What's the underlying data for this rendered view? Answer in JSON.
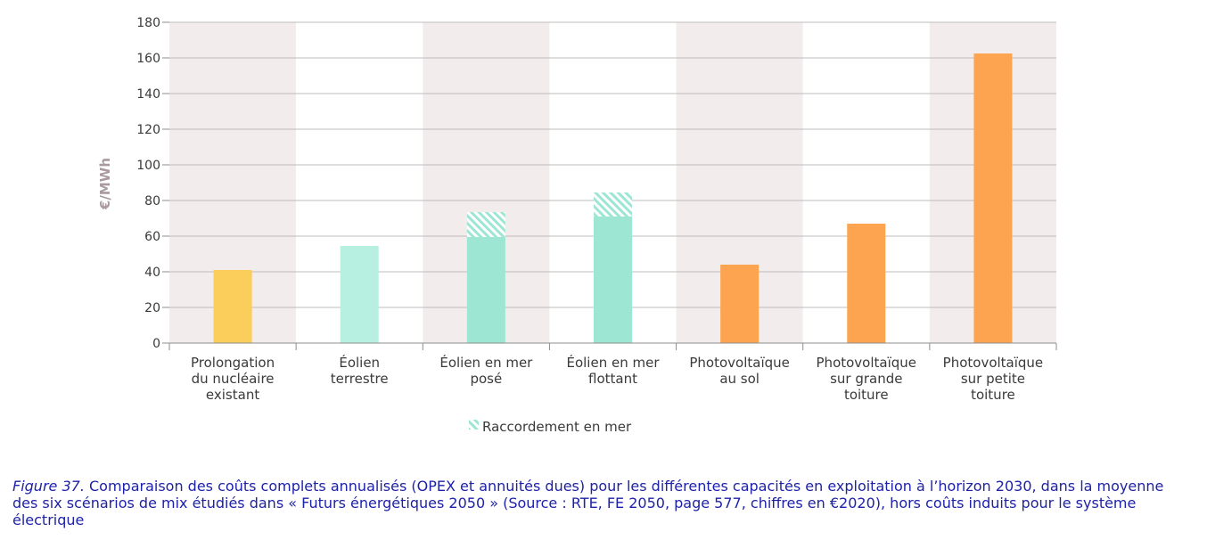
{
  "chart_data": {
    "type": "bar",
    "ylabel": "€/MWh",
    "ylim": [
      0,
      180
    ],
    "yticks": [
      0,
      20,
      40,
      60,
      80,
      100,
      120,
      140,
      160,
      180
    ],
    "grid": true,
    "categories": [
      [
        "Prolongation",
        "du nucléaire",
        "existant"
      ],
      [
        "Éolien",
        "terrestre"
      ],
      [
        "Éolien en mer",
        "posé"
      ],
      [
        "Éolien en mer",
        "flottant"
      ],
      [
        "Photovoltaïque",
        "au sol"
      ],
      [
        "Photovoltaïque",
        "sur grande",
        "toiture"
      ],
      [
        "Photovoltaïque",
        "sur petite",
        "toiture"
      ]
    ],
    "series": [
      {
        "values": [
          41,
          54.5,
          59.5,
          71,
          44,
          67,
          162.5
        ],
        "colors": [
          "#fbcd5a",
          "#b7efe1",
          "#9de6d3",
          "#9de6d3",
          "#fda451",
          "#fda451",
          "#fda451"
        ]
      },
      {
        "name": "Raccordement en mer",
        "values": [
          0,
          0,
          14,
          13.5,
          0,
          0,
          0
        ],
        "color": "#9de6d3",
        "pattern": "hatched"
      }
    ],
    "legend": {
      "position": "bottom-center"
    },
    "colors": {
      "band_shaded": "#f2eced",
      "band_plain": "#ffffff",
      "grid": "#bdbdbd",
      "axis": "#8c8c8c"
    }
  },
  "caption": {
    "figure_label": "Figure 37.",
    "text": " Comparaison des coûts complets annualisés (OPEX et annuités dues) pour les différentes capacités en exploitation à l’horizon 2030, dans la moyenne des six scénarios de mix étudiés dans « Futurs énergétiques 2050 » (Source : RTE, FE 2050, page 577, chiffres en €2020), hors coûts induits pour le système électrique"
  }
}
